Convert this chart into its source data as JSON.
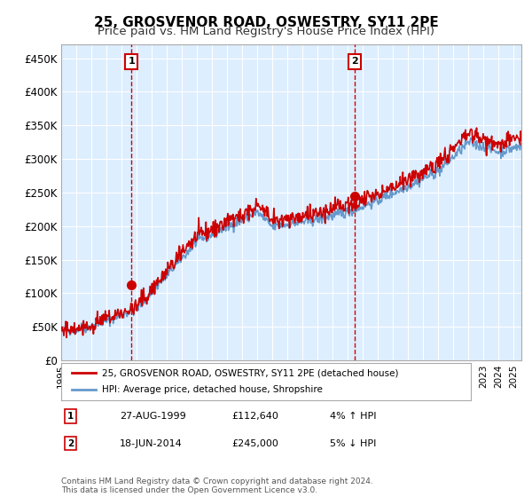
{
  "title": "25, GROSVENOR ROAD, OSWESTRY, SY11 2PE",
  "subtitle": "Price paid vs. HM Land Registry's House Price Index (HPI)",
  "yticks": [
    0,
    50000,
    100000,
    150000,
    200000,
    250000,
    300000,
    350000,
    400000,
    450000
  ],
  "ylim": [
    0,
    470000
  ],
  "xlim_start": 1995.0,
  "xlim_end": 2025.5,
  "sale1_x": 1999.65,
  "sale1_y": 112640,
  "sale2_x": 2014.46,
  "sale2_y": 245000,
  "sale1_label": "27-AUG-1999",
  "sale1_price": "£112,640",
  "sale1_hpi": "4% ↑ HPI",
  "sale2_label": "18-JUN-2014",
  "sale2_price": "£245,000",
  "sale2_hpi": "5% ↓ HPI",
  "line1_label": "25, GROSVENOR ROAD, OSWESTRY, SY11 2PE (detached house)",
  "line2_label": "HPI: Average price, detached house, Shropshire",
  "footer": "Contains HM Land Registry data © Crown copyright and database right 2024.\nThis data is licensed under the Open Government Licence v3.0.",
  "color_red": "#cc0000",
  "color_blue": "#6699cc",
  "background_plot": "#ddeeff",
  "background_fig": "#ffffff",
  "grid_color": "#ffffff",
  "title_fontsize": 11,
  "subtitle_fontsize": 9.5
}
